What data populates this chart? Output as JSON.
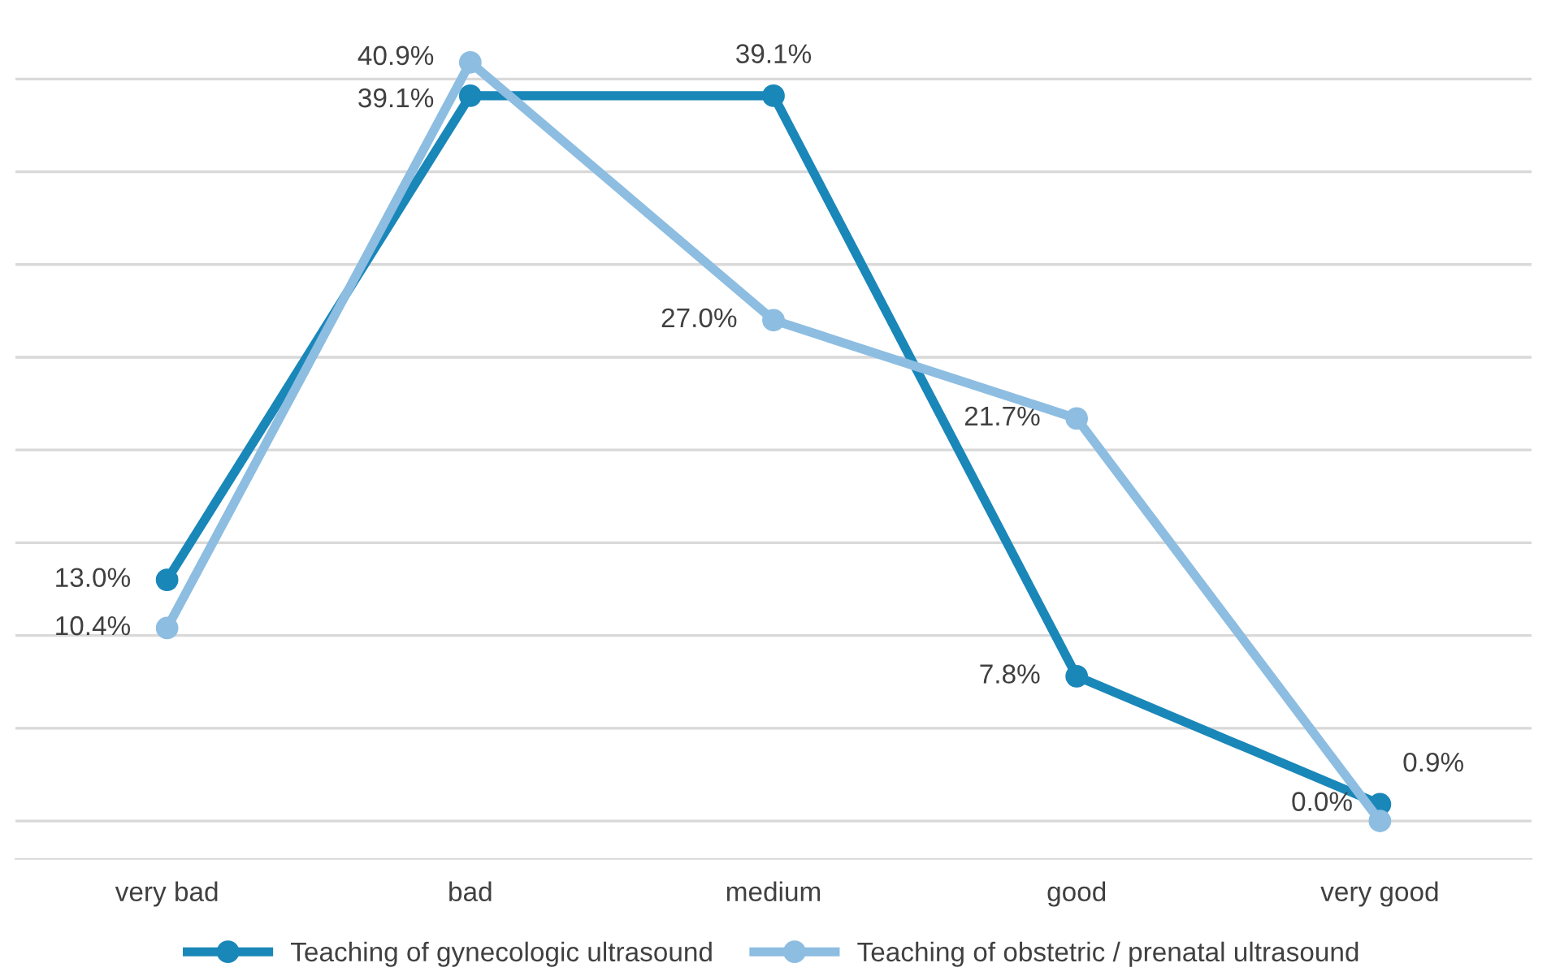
{
  "chart_data": {
    "type": "line",
    "categories": [
      "very bad",
      "bad",
      "medium",
      "good",
      "very good"
    ],
    "series": [
      {
        "name": "Teaching of gynecologic ultrasound",
        "color": "#1a87b9",
        "values": [
          13.0,
          39.1,
          39.1,
          7.8,
          0.9
        ],
        "value_labels": [
          "13.0%",
          "39.1%",
          "39.1%",
          "7.8%",
          "0.9%"
        ]
      },
      {
        "name": "Teaching of obstetric / prenatal ultrasound",
        "color": "#8dbde1",
        "values": [
          10.4,
          40.9,
          27.0,
          21.7,
          0.0
        ],
        "value_labels": [
          "10.4%",
          "40.9%",
          "27.0%",
          "21.7%",
          "0.0%"
        ]
      }
    ],
    "tick_labels": "x",
    "grid": "y",
    "legend": "bottom",
    "marker": "circle",
    "line_style": "solid"
  }
}
